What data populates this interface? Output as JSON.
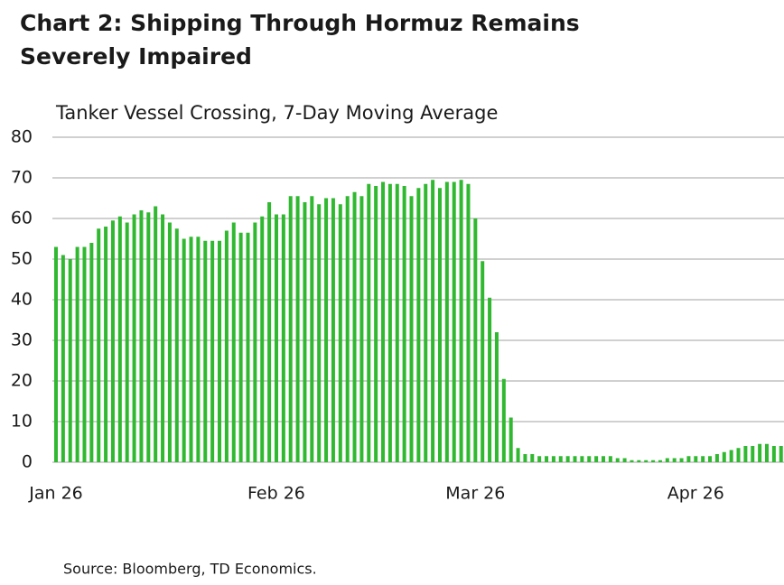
{
  "chart_data": {
    "type": "bar",
    "title": [
      "Chart 2: Shipping Through Hormuz Remains",
      "Severely Impaired"
    ],
    "subtitle": "Tanker Vessel Crossing, 7-Day Moving Average",
    "source": "Source: Bloomberg, TD Economics.",
    "color": "#30b830",
    "grid": true,
    "ylim": [
      0,
      80
    ],
    "yticks": [
      0,
      10,
      20,
      30,
      40,
      50,
      60,
      70,
      80
    ],
    "categories": [
      "Jan 26",
      null,
      null,
      null,
      null,
      null,
      null,
      null,
      null,
      null,
      null,
      null,
      null,
      null,
      null,
      null,
      null,
      null,
      null,
      null,
      null,
      null,
      null,
      null,
      null,
      null,
      null,
      null,
      null,
      null,
      null,
      "Feb 26",
      null,
      null,
      null,
      null,
      null,
      null,
      null,
      null,
      null,
      null,
      null,
      null,
      null,
      null,
      null,
      null,
      null,
      null,
      null,
      null,
      null,
      null,
      null,
      null,
      null,
      null,
      null,
      "Mar 26",
      null,
      null,
      null,
      null,
      null,
      null,
      null,
      null,
      null,
      null,
      null,
      null,
      null,
      null,
      null,
      null,
      null,
      null,
      null,
      null,
      null,
      null,
      null,
      null,
      null,
      null,
      null,
      null,
      null,
      null,
      "Apr 26",
      null,
      null,
      null,
      null,
      null,
      null,
      null,
      null,
      null,
      null,
      null,
      null
    ],
    "values": [
      53,
      51,
      50,
      53,
      53,
      54,
      57.5,
      58,
      59.5,
      60.5,
      59,
      61,
      62,
      61.5,
      63,
      61,
      59,
      57.5,
      55,
      55.5,
      55.5,
      54.5,
      54.5,
      54.5,
      57,
      59,
      56.5,
      56.5,
      59,
      60.5,
      64,
      61,
      61,
      65.5,
      65.5,
      64,
      65.5,
      63.5,
      65,
      65,
      63.5,
      65.5,
      66.5,
      65.5,
      68.5,
      68,
      69,
      68.5,
      68.5,
      68,
      65.5,
      67.5,
      68.5,
      69.5,
      67.5,
      69,
      69,
      69.5,
      68.5,
      60,
      49.5,
      40.5,
      32,
      20.5,
      11,
      3.5,
      2,
      2,
      1.5,
      1.5,
      1.5,
      1.5,
      1.5,
      1.5,
      1.5,
      1.5,
      1.5,
      1.5,
      1.5,
      1,
      1,
      0.5,
      0.5,
      0.5,
      0.5,
      0.5,
      1,
      1,
      1,
      1.5,
      1.5,
      1.5,
      1.5,
      2,
      2.5,
      3,
      3.5,
      4,
      4,
      4.5,
      4.5,
      4,
      4
    ]
  }
}
